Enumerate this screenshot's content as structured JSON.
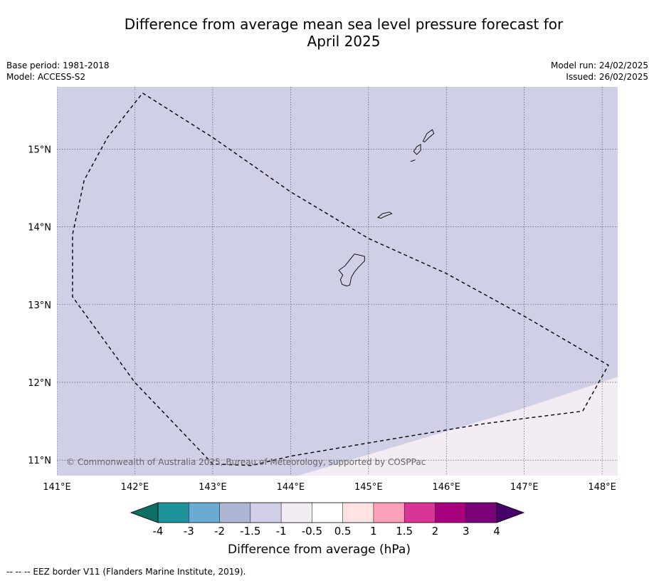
{
  "title": {
    "line1": "Difference from average mean sea level pressure forecast for",
    "line2": "April 2025"
  },
  "meta_left": {
    "base_period": "Base period: 1981-2018",
    "model": "Model: ACCESS-S2"
  },
  "meta_right": {
    "model_run": "Model run: 24/02/2025",
    "issued": "Issued: 26/02/2025"
  },
  "map": {
    "lon_range": [
      141.0,
      148.2
    ],
    "lat_range": [
      10.8,
      15.8
    ],
    "lon_ticks": [
      141,
      142,
      143,
      144,
      145,
      146,
      147,
      148
    ],
    "lon_tick_labels": [
      "141°E",
      "142°E",
      "143°E",
      "144°E",
      "145°E",
      "146°E",
      "147°E",
      "148°E"
    ],
    "lat_ticks": [
      11,
      12,
      13,
      14,
      15
    ],
    "lat_tick_labels": [
      "11°N",
      "12°N",
      "13°N",
      "14°N",
      "15°N"
    ],
    "gridlines": true,
    "background_color": "#cfd0e6",
    "anomaly_region_color": "#f4ecf5",
    "copyright": "© Commonwealth of Australia 2025, Bureau of Meteorology, supported by COSPPac",
    "eez_border": [
      [
        142.1,
        15.72
      ],
      [
        143.0,
        15.15
      ],
      [
        144.0,
        14.45
      ],
      [
        145.0,
        13.85
      ],
      [
        146.0,
        13.4
      ],
      [
        147.0,
        12.85
      ],
      [
        148.08,
        12.22
      ],
      [
        147.75,
        11.63
      ],
      [
        146.5,
        11.47
      ],
      [
        145.0,
        11.22
      ],
      [
        144.0,
        11.05
      ],
      [
        143.5,
        10.93
      ],
      [
        143.0,
        10.95
      ],
      [
        142.0,
        12.0
      ],
      [
        141.2,
        13.1
      ],
      [
        141.2,
        13.9
      ],
      [
        141.35,
        14.6
      ],
      [
        141.65,
        15.15
      ],
      [
        142.1,
        15.72
      ]
    ],
    "anomaly_boundary": [
      [
        144.1,
        10.8
      ],
      [
        145.0,
        11.07
      ],
      [
        146.0,
        11.37
      ],
      [
        147.0,
        11.67
      ],
      [
        148.2,
        12.07
      ]
    ],
    "islands": [
      [
        [
          144.62,
          13.44
        ],
        [
          144.7,
          13.5
        ],
        [
          144.78,
          13.6
        ],
        [
          144.82,
          13.65
        ],
        [
          144.87,
          13.64
        ],
        [
          144.95,
          13.62
        ],
        [
          144.95,
          13.56
        ],
        [
          144.87,
          13.48
        ],
        [
          144.82,
          13.42
        ],
        [
          144.78,
          13.35
        ],
        [
          144.76,
          13.25
        ],
        [
          144.72,
          13.24
        ],
        [
          144.66,
          13.26
        ],
        [
          144.64,
          13.32
        ],
        [
          144.67,
          13.38
        ],
        [
          144.62,
          13.44
        ]
      ],
      [
        [
          145.12,
          14.12
        ],
        [
          145.18,
          14.17
        ],
        [
          145.27,
          14.19
        ],
        [
          145.3,
          14.17
        ],
        [
          145.22,
          14.14
        ],
        [
          145.16,
          14.11
        ],
        [
          145.12,
          14.12
        ]
      ],
      [
        [
          145.58,
          14.97
        ],
        [
          145.62,
          15.03
        ],
        [
          145.67,
          15.06
        ],
        [
          145.67,
          14.98
        ],
        [
          145.62,
          14.93
        ],
        [
          145.58,
          14.97
        ]
      ],
      [
        [
          145.7,
          15.1
        ],
        [
          145.75,
          15.2
        ],
        [
          145.82,
          15.25
        ],
        [
          145.84,
          15.2
        ],
        [
          145.78,
          15.15
        ],
        [
          145.72,
          15.09
        ],
        [
          145.7,
          15.1
        ]
      ],
      [
        [
          145.54,
          14.84
        ],
        [
          145.6,
          14.86
        ]
      ]
    ]
  },
  "colorbar": {
    "title": "Difference from average (hPa)",
    "colors": [
      "#0d6e63",
      "#1e9299",
      "#6aabd4",
      "#aeb6d4",
      "#cfd0e6",
      "#f4ecf5",
      "#ffffff",
      "#ffe2e3",
      "#f9a1b9",
      "#d93497",
      "#a8007f",
      "#7a037a",
      "#48006b"
    ],
    "tick_labels": [
      "-4",
      "-3",
      "-2",
      "-1.5",
      "-1",
      "-0.5",
      "0.5",
      "1",
      "1.5",
      "2",
      "3",
      "4"
    ]
  },
  "footer": {
    "legend_text": "--  --  -- EEZ border V11 (Flanders Marine Institute, 2019)."
  }
}
